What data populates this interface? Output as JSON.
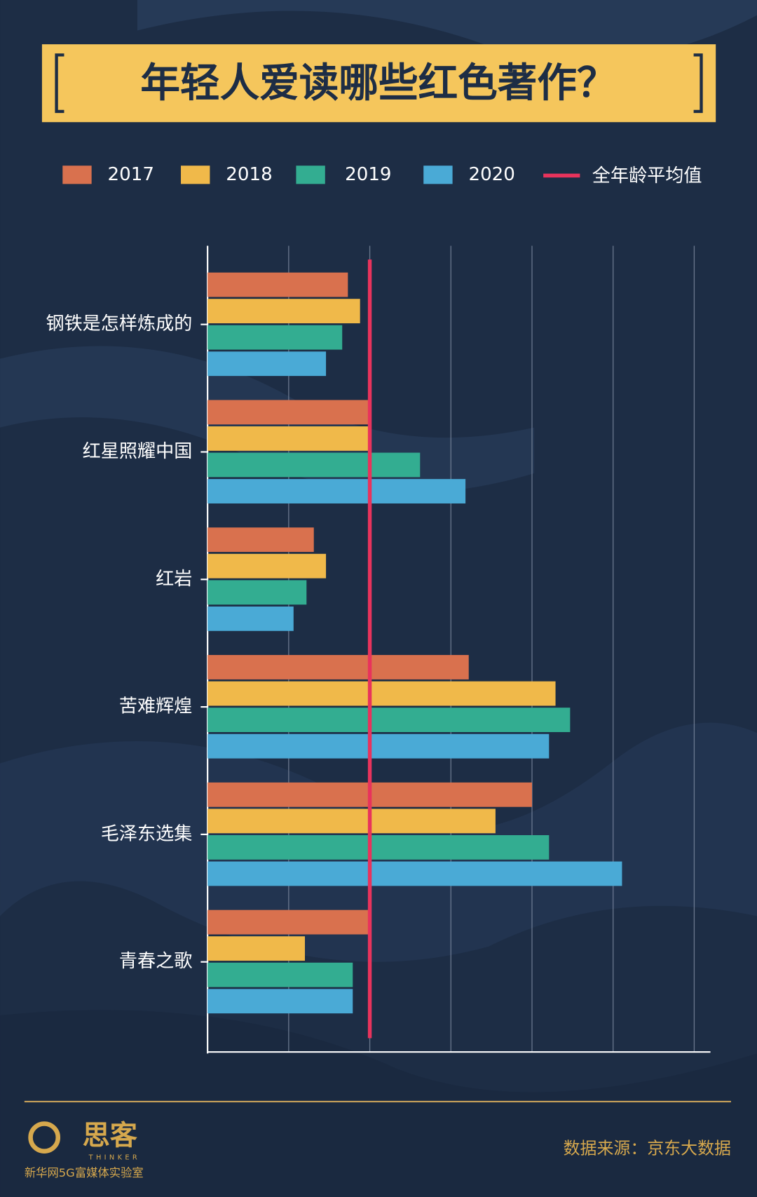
{
  "chart_data": {
    "type": "hbar",
    "title": "年轻人爱读哪些红色著作？",
    "categories": [
      "钢铁是怎样炼成的",
      "红星照耀中国",
      "红岩",
      "苦难辉煌",
      "毛泽东选集",
      "青春之歌"
    ],
    "series": [
      {
        "name": "2017",
        "color": "#d9714e",
        "values": [
          1.73,
          2.0,
          1.31,
          3.22,
          4.0,
          1.98
        ]
      },
      {
        "name": "2018",
        "color": "#f0b94a",
        "values": [
          1.88,
          2.0,
          1.46,
          4.29,
          3.55,
          1.2
        ]
      },
      {
        "name": "2019",
        "color": "#33ad91",
        "values": [
          1.66,
          2.62,
          1.22,
          4.47,
          4.21,
          1.79
        ]
      },
      {
        "name": "2020",
        "color": "#4aaad6",
        "values": [
          1.46,
          3.18,
          1.06,
          4.21,
          5.11,
          1.79
        ]
      }
    ],
    "average_line": {
      "name": "全年龄平均值",
      "value": 2.0,
      "color": "#e8335c"
    },
    "xlim": [
      0,
      6.2
    ],
    "xticks": [
      0,
      1,
      2,
      3,
      4,
      5,
      6
    ],
    "grid": true,
    "source": "数据来源：京东大数据"
  },
  "footer": {
    "logo": "思客",
    "logo_sub": "THINKER",
    "org": "新华网5G富媒体实验室"
  }
}
